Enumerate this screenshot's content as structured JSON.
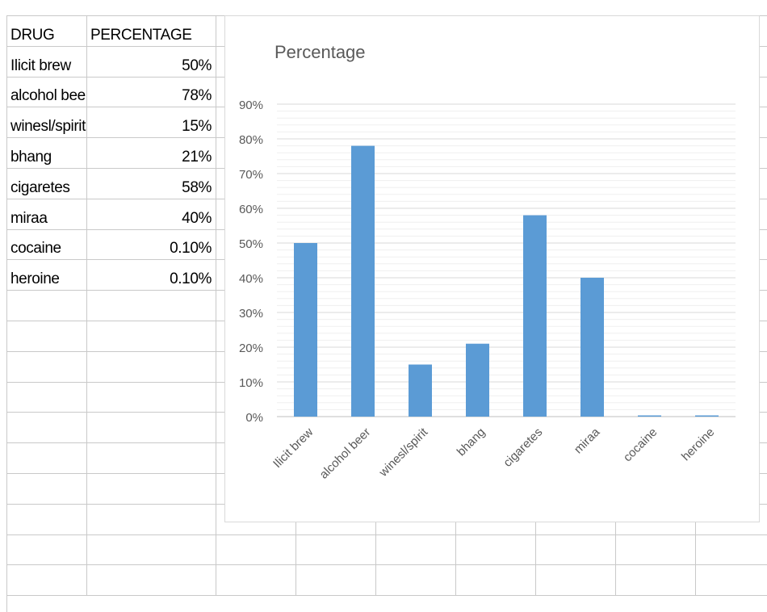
{
  "sheet": {
    "headers": [
      "DRUG",
      "PERCENTAGE"
    ],
    "rows": [
      {
        "drug": "Ilicit brew",
        "percentage": "50%"
      },
      {
        "drug": "alcohol beer",
        "percentage": "78%"
      },
      {
        "drug": "winesl/spirit",
        "percentage": "15%"
      },
      {
        "drug": "bhang",
        "percentage": "21%"
      },
      {
        "drug": "cigaretes",
        "percentage": "58%"
      },
      {
        "drug": "miraa",
        "percentage": "40%"
      },
      {
        "drug": "cocaine",
        "percentage": "0.10%"
      },
      {
        "drug": "heroine",
        "percentage": "0.10%"
      }
    ]
  },
  "chart_data": {
    "type": "bar",
    "title": "Percentage",
    "categories": [
      "Ilicit brew",
      "alcohol beer",
      "winesl/spirit",
      "bhang",
      "cigaretes",
      "miraa",
      "cocaine",
      "heroine"
    ],
    "values": [
      50,
      78,
      15,
      21,
      58,
      40,
      0.1,
      0.1
    ],
    "ylim": [
      0,
      90
    ],
    "yticks": [
      0,
      10,
      20,
      30,
      40,
      50,
      60,
      70,
      80,
      90
    ],
    "ytick_labels": [
      "0%",
      "10%",
      "20%",
      "30%",
      "40%",
      "50%",
      "60%",
      "70%",
      "80%",
      "90%"
    ],
    "xlabel": "",
    "ylabel": "",
    "bar_color": "#5b9bd5",
    "grid": true,
    "legend": "none"
  }
}
